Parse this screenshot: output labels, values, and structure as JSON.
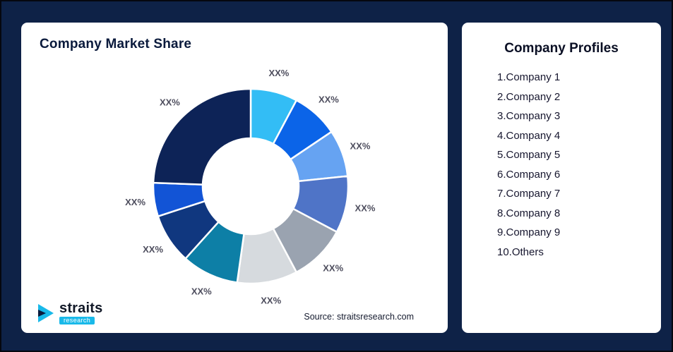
{
  "left_card": {
    "title": "Company Market Share"
  },
  "logo": {
    "name": "straits",
    "sub": "research"
  },
  "right_card": {
    "title": "Company Profiles",
    "items": [
      "1.Company 1",
      "2.Company 2",
      "3.Company 3",
      "4.Company 4",
      "5.Company 5",
      "6.Company 6",
      "7.Company 7",
      "8.Company 8",
      "9.Company 9",
      "10.Others"
    ]
  },
  "chart_data": {
    "type": "pie",
    "variant": "donut",
    "title": "Company Market Share",
    "labels": [
      "XX%",
      "XX%",
      "XX%",
      "XX%",
      "XX%",
      "XX%",
      "XX%",
      "XX%",
      "XX%",
      "XX%"
    ],
    "values": [
      28,
      28,
      28,
      34,
      34,
      36,
      34,
      30,
      20,
      88
    ],
    "colors": [
      "#33bdf5",
      "#0b64e8",
      "#66a3f2",
      "#4f74c7",
      "#9aa3b0",
      "#d6dade",
      "#0d7fa6",
      "#10377f",
      "#1254d6",
      "#0d2357"
    ],
    "source": "Source: straitsresearch.com"
  }
}
